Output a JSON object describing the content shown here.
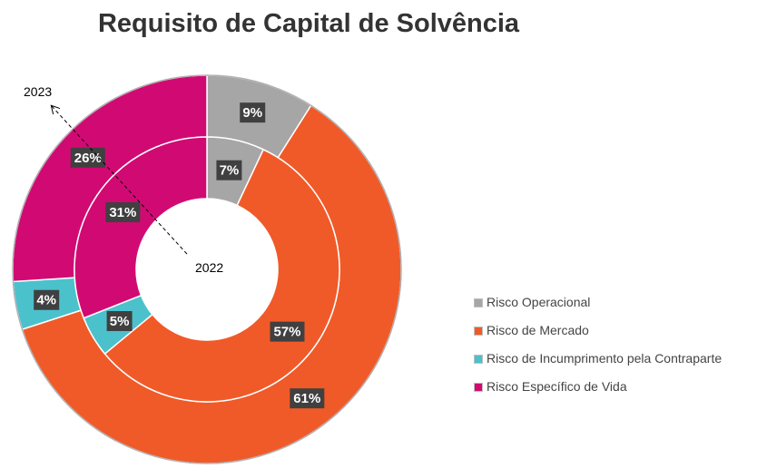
{
  "chart_data": {
    "type": "donut",
    "title": "Requisito de Capital de Solvência",
    "legend_position": "right",
    "categories": [
      "Risco Operacional",
      "Risco de Mercado",
      "Risco de Incumprimento pela Contraparte",
      "Risco Específico de Vida"
    ],
    "colors": [
      "#a6a6a6",
      "#f05a28",
      "#4bc1cc",
      "#d10a73"
    ],
    "series": [
      {
        "name": "2023",
        "ring": "outer",
        "values": [
          9,
          61,
          4,
          26
        ],
        "labels": [
          "9%",
          "61%",
          "4%",
          "26%"
        ]
      },
      {
        "name": "2022",
        "ring": "inner",
        "values": [
          7,
          57,
          5,
          31
        ],
        "labels": [
          "7%",
          "57%",
          "5%",
          "31%"
        ]
      }
    ]
  }
}
